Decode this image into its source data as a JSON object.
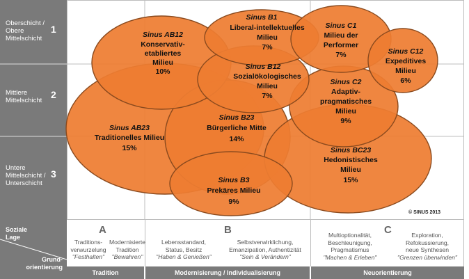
{
  "row_labels": [
    {
      "text": "Oberschicht / Obere Mittelschicht",
      "lines": [
        "Oberschicht /",
        "Obere",
        "Mittelschicht"
      ],
      "num": "1"
    },
    {
      "text": "Mittlere Mittelschicht",
      "lines": [
        "Mittlere",
        "Mittelschicht"
      ],
      "num": "2"
    },
    {
      "text": "Untere Mittelschicht / Unterschicht",
      "lines": [
        "Untere",
        "Mittelschicht /",
        "Unterschicht"
      ],
      "num": "3"
    }
  ],
  "axis": {
    "soziale_lage": "Soziale Lage",
    "grundorientierung": "Grund-orientierung",
    "grund_lines": [
      "Grund-",
      "orientierung"
    ],
    "soziale_lines": [
      "Soziale",
      "Lage"
    ]
  },
  "columns": [
    {
      "letter": "A",
      "band": "Tradition",
      "sub": [
        {
          "text": "Traditions-verwurzelung",
          "lines": [
            "Traditions-",
            "verwurzelung"
          ],
          "quote": "\"Festhalten\""
        },
        {
          "text": "Modernisierte Tradition",
          "lines": [
            "Modernisierte",
            "Tradition"
          ],
          "quote": "\"Bewahren\""
        }
      ]
    },
    {
      "letter": "B",
      "band": "Modernisierung / Individualisierung",
      "sub": [
        {
          "text": "Lebensstandard, Status, Besitz",
          "lines": [
            "Lebensstandard,",
            "Status, Besitz"
          ],
          "quote": "\"Haben & Genießen\""
        },
        {
          "text": "Selbstverwirklichung, Emanzipation, Authentizität",
          "lines": [
            "Selbstverwirklichung,",
            "Emanzipation, Authentizität"
          ],
          "quote": "\"Sein & Verändern\""
        }
      ]
    },
    {
      "letter": "C",
      "band": "Neuorientierung",
      "sub": [
        {
          "text": "Multioptionalität, Beschleunigung, Pragmatismus",
          "lines": [
            "Multioptionalität,",
            "Beschleunigung,",
            "Pragmatismus"
          ],
          "quote": "\"Machen & Erleben\""
        },
        {
          "text": "Exploration, Refokussierung, neue Synthesen",
          "lines": [
            "Exploration,",
            "Refokussierung,",
            "neue Synthesen"
          ],
          "quote": "\"Grenzen überwinden\""
        }
      ]
    }
  ],
  "milieus": [
    {
      "code": "Sinus AB12",
      "name": "Konservativ-etabliertes Milieu",
      "name_lines": [
        "Konservativ-",
        "etabliertes",
        "Milieu"
      ],
      "share": "10%"
    },
    {
      "code": "Sinus B1",
      "name": "Liberal-intellektuelles Milieu",
      "name_lines": [
        "Liberal-intellektuelles",
        "Milieu"
      ],
      "share": "7%"
    },
    {
      "code": "Sinus C1",
      "name": "Milieu der Performer",
      "name_lines": [
        "Milieu der",
        "Performer"
      ],
      "share": "7%"
    },
    {
      "code": "Sinus C12",
      "name": "Expeditives Milieu",
      "name_lines": [
        "Expeditives",
        "Milieu"
      ],
      "share": "6%"
    },
    {
      "code": "Sinus B12",
      "name": "Sozialökologisches Milieu",
      "name_lines": [
        "Sozialökologisches",
        "Milieu"
      ],
      "share": "7%"
    },
    {
      "code": "Sinus C2",
      "name": "Adaptiv-pragmatisches Milieu",
      "name_lines": [
        "Adaptiv-",
        "pragmatisches",
        "Milieu"
      ],
      "share": "9%"
    },
    {
      "code": "Sinus AB23",
      "name": "Traditionelles Milieu",
      "name_lines": [
        "Traditionelles Milieu"
      ],
      "share": "15%"
    },
    {
      "code": "Sinus B23",
      "name": "Bürgerliche Mitte",
      "name_lines": [
        "Bürgerliche Mitte"
      ],
      "share": "14%"
    },
    {
      "code": "Sinus BC23",
      "name": "Hedonistisches Milieu",
      "name_lines": [
        "Hedonistisches",
        "Milieu"
      ],
      "share": "15%"
    },
    {
      "code": "Sinus B3",
      "name": "Prekäres Milieu",
      "name_lines": [
        "Prekäres Milieu"
      ],
      "share": "9%"
    }
  ],
  "copyright": "© SINUS 2013",
  "colors": {
    "milieu_fill": "#ee7d32",
    "milieu_stroke": "#8a4a1e",
    "gray": "#7a7a7a",
    "grid": "#bdbdbd"
  }
}
